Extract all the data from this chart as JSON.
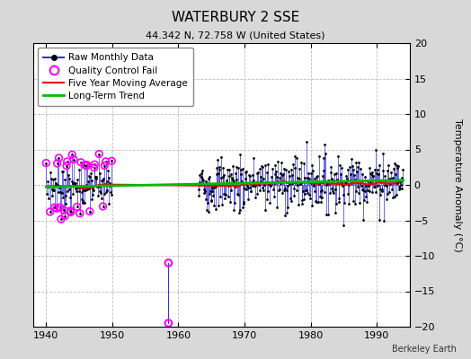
{
  "title": "WATERBURY 2 SSE",
  "subtitle": "44.342 N, 72.758 W (United States)",
  "ylabel": "Temperature Anomaly (°C)",
  "credit": "Berkeley Earth",
  "ylim": [
    -20,
    20
  ],
  "xlim": [
    1938,
    1995
  ],
  "xticks": [
    1940,
    1950,
    1960,
    1970,
    1980,
    1990
  ],
  "yticks": [
    -20,
    -15,
    -10,
    -5,
    0,
    5,
    10,
    15,
    20
  ],
  "bg_color": "#d8d8d8",
  "plot_bg_color": "#ffffff",
  "grid_color": "#bbbbbb",
  "raw_line_color": "#3333dd",
  "raw_dot_color": "#000000",
  "ma_color": "#ee0000",
  "trend_color": "#00bb00",
  "qc_color": "#ff00ff",
  "seed": 7,
  "start_year": 1940,
  "end_year": 1993,
  "gap_start": 1950,
  "gap_end": 1963,
  "noise_std": 2.0,
  "trend_slope": 0.018,
  "trend_intercept": -0.3,
  "ma_window": 60,
  "qc_x": 1958.5,
  "qc_y_top": -11.0,
  "qc_y_bot": -19.5
}
